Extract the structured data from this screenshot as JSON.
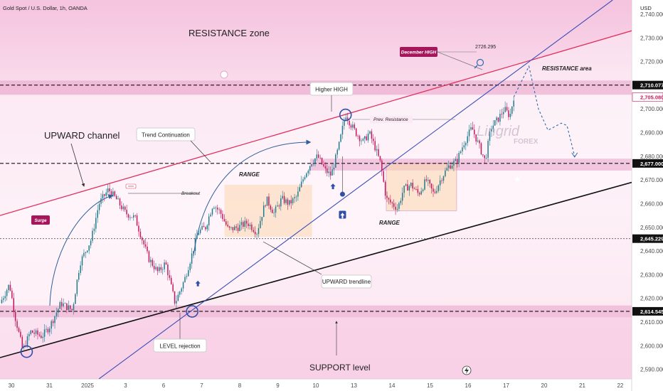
{
  "header": {
    "symbol": "Gold Spot / U.S. Dollar, 1h, OANDA",
    "currency": "USD"
  },
  "chart_data": {
    "type": "candlestick",
    "title": "Gold Spot / U.S. Dollar, 1h, OANDA",
    "y_axis": {
      "unit": "USD",
      "range": [
        2586,
        2746
      ],
      "ticks": [
        2590,
        2600,
        2610,
        2620,
        2630,
        2640,
        2650,
        2660,
        2670,
        2680,
        2690,
        2700,
        2710,
        2720,
        2730,
        2740
      ],
      "tick_labels": [
        "2,590.000",
        "2,600.000",
        "2,610.000",
        "2,620.000",
        "2,630.000",
        "2,640.000",
        "2,650.000",
        "2,660.000",
        "2,670.000",
        "2,680.000",
        "2,690.000",
        "2,700.000",
        "2,710.000",
        "2,720.000",
        "2,730.000",
        "2,740.000"
      ]
    },
    "x_axis": {
      "unit": "trading day",
      "range": [
        -0.3,
        16.3
      ],
      "ticks": [
        0,
        1,
        2,
        3,
        4,
        5,
        6,
        7,
        8,
        9,
        10,
        11,
        12,
        13,
        14,
        15,
        16
      ],
      "tick_labels": [
        "30",
        "31",
        "2025",
        "3",
        "6",
        "7",
        "8",
        "9",
        "10",
        "13",
        "14",
        "15",
        "16",
        "17",
        "20",
        "21",
        "22"
      ]
    },
    "price_labels": [
      {
        "value": 2710.077,
        "label": "2,710.077",
        "style": "dark"
      },
      {
        "value": 2705.08,
        "label": "2,705.080",
        "style": "red"
      },
      {
        "value": 2677.0,
        "label": "2,677.000",
        "style": "dark"
      },
      {
        "value": 2645.229,
        "label": "2,645.229",
        "style": "dark"
      },
      {
        "value": 2614.545,
        "label": "2,614.545",
        "style": "dark"
      }
    ],
    "horizontal_levels": [
      2710.077,
      2677.0,
      2645.229,
      2614.545
    ],
    "candle_path": [
      [
        -0.3,
        2618
      ],
      [
        -0.05,
        2626
      ],
      [
        0.1,
        2612
      ],
      [
        0.3,
        2598
      ],
      [
        0.5,
        2606
      ],
      [
        0.8,
        2604
      ],
      [
        1.0,
        2608
      ],
      [
        1.3,
        2618
      ],
      [
        1.6,
        2615
      ],
      [
        1.8,
        2635
      ],
      [
        2.1,
        2645
      ],
      [
        2.3,
        2660
      ],
      [
        2.55,
        2666
      ],
      [
        2.75,
        2662
      ],
      [
        3.0,
        2656
      ],
      [
        3.25,
        2654
      ],
      [
        3.6,
        2637
      ],
      [
        3.85,
        2631
      ],
      [
        4.05,
        2635
      ],
      [
        4.3,
        2618
      ],
      [
        4.55,
        2628
      ],
      [
        4.75,
        2639
      ],
      [
        4.9,
        2648
      ],
      [
        5.1,
        2650
      ],
      [
        5.3,
        2660
      ],
      [
        5.5,
        2656
      ],
      [
        5.7,
        2649
      ],
      [
        5.95,
        2650
      ],
      [
        6.2,
        2652
      ],
      [
        6.45,
        2648
      ],
      [
        6.7,
        2662
      ],
      [
        6.9,
        2656
      ],
      [
        7.1,
        2662
      ],
      [
        7.3,
        2660
      ],
      [
        7.5,
        2663
      ],
      [
        7.7,
        2672
      ],
      [
        7.9,
        2678
      ],
      [
        8.05,
        2680
      ],
      [
        8.25,
        2674
      ],
      [
        8.4,
        2672
      ],
      [
        8.6,
        2684
      ],
      [
        8.78,
        2698
      ],
      [
        8.9,
        2694
      ],
      [
        9.05,
        2690
      ],
      [
        9.25,
        2686
      ],
      [
        9.4,
        2690
      ],
      [
        9.55,
        2684
      ],
      [
        9.7,
        2677
      ],
      [
        9.85,
        2662
      ],
      [
        10.0,
        2660
      ],
      [
        10.15,
        2658
      ],
      [
        10.3,
        2666
      ],
      [
        10.5,
        2668
      ],
      [
        10.7,
        2664
      ],
      [
        10.9,
        2670
      ],
      [
        11.1,
        2664
      ],
      [
        11.3,
        2671
      ],
      [
        11.5,
        2676
      ],
      [
        11.7,
        2678
      ],
      [
        11.9,
        2686
      ],
      [
        12.1,
        2692
      ],
      [
        12.3,
        2684
      ],
      [
        12.45,
        2678
      ],
      [
        12.6,
        2692
      ],
      [
        12.8,
        2696
      ],
      [
        12.95,
        2700
      ],
      [
        13.1,
        2697
      ],
      [
        13.2,
        2705.08
      ]
    ],
    "channel": {
      "upper": [
        [
          -0.3,
          2655
        ],
        [
          16.3,
          2733
        ]
      ],
      "lower": [
        [
          -0.3,
          2595
        ],
        [
          16.3,
          2669
        ]
      ]
    },
    "trendline_steep": [
      [
        2.3,
        2586
      ],
      [
        15.8,
        2746
      ]
    ],
    "projection": [
      [
        13.2,
        2705
      ],
      [
        13.6,
        2718
      ],
      [
        13.85,
        2700
      ],
      [
        14.1,
        2691
      ],
      [
        14.45,
        2694
      ],
      [
        14.6,
        2693
      ],
      [
        14.8,
        2680
      ]
    ],
    "zones": [
      {
        "name": "resistance-band",
        "from": 2706,
        "to": 2712,
        "x": [
          -0.3,
          16.3
        ]
      },
      {
        "name": "support-band",
        "from": 2612,
        "to": 2617,
        "x": [
          -0.3,
          16.3
        ]
      },
      {
        "name": "mid-range-band",
        "from": 2674,
        "to": 2679,
        "x": [
          7.85,
          16.3
        ]
      },
      {
        "name": "range-box-1",
        "from": 2646,
        "to": 2668,
        "x": [
          5.6,
          7.9
        ]
      },
      {
        "name": "range-box-2",
        "from": 2657,
        "to": 2677,
        "x": [
          9.85,
          11.7
        ]
      }
    ],
    "annotations": {
      "resistance_zone": "RESISTANCE zone",
      "resistance_area": "RESISTANCE area",
      "upward_channel": "UPWARD channel",
      "trend_continuation": "Trend Continuation",
      "range_1": "RANGE",
      "range_2": "RANGE",
      "breakout": "Breakout",
      "higher_high": "Higher HIGH",
      "prev_resistance": "Prev. Resistance",
      "december_high": "December HIGH",
      "december_high_value": "2726.295",
      "surge": "Surge",
      "upward_trendline": "UPWARD trendline",
      "level_rejection": "LEVEL rejection",
      "support_level": "SUPPORT level"
    },
    "watermark": {
      "brand": "Lingrid",
      "sub": "FOREX"
    }
  }
}
